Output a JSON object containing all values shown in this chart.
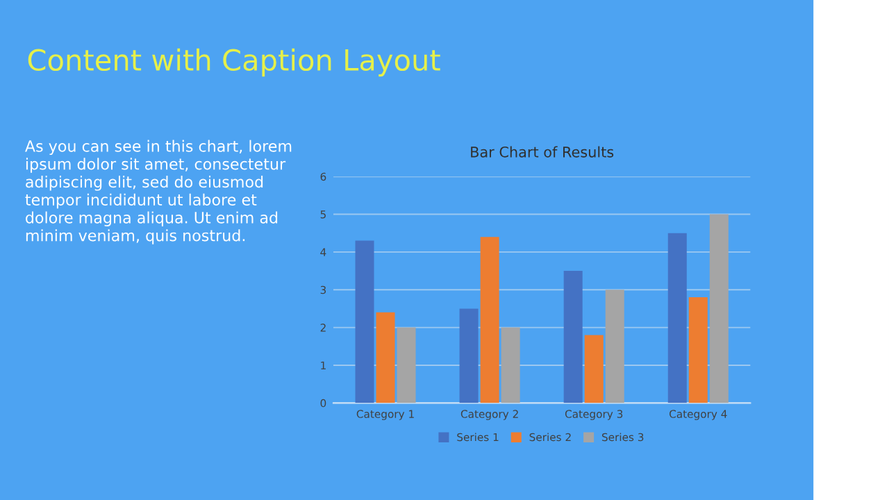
{
  "chart_data": {
    "type": "bar",
    "title": "Bar Chart of Results",
    "categories": [
      "Category 1",
      "Category 2",
      "Category 3",
      "Category 4"
    ],
    "series": [
      {
        "name": "Series 1",
        "color": "#4472c4",
        "values": [
          4.3,
          2.5,
          3.5,
          4.5
        ]
      },
      {
        "name": "Series 2",
        "color": "#ed7d31",
        "values": [
          2.4,
          4.4,
          1.8,
          2.8
        ]
      },
      {
        "name": "Series 3",
        "color": "#a5a5a5",
        "values": [
          2,
          2,
          3,
          5
        ]
      }
    ],
    "ylim": [
      0,
      6
    ],
    "yticks": [
      0,
      1,
      2,
      3,
      4,
      5,
      6
    ],
    "grid": "y",
    "legend": "bottom",
    "annotations": [
      "Content with Caption Layout",
      "As you can see in this chart, lorem\nipsum dolor sit amet, consectetur\nadipiscing elit, sed do eiusmod\ntempor incididunt ut labore et\ndolore magna aliqua. Ut enim ad\nminim veniam, quis nostrud."
    ]
  }
}
